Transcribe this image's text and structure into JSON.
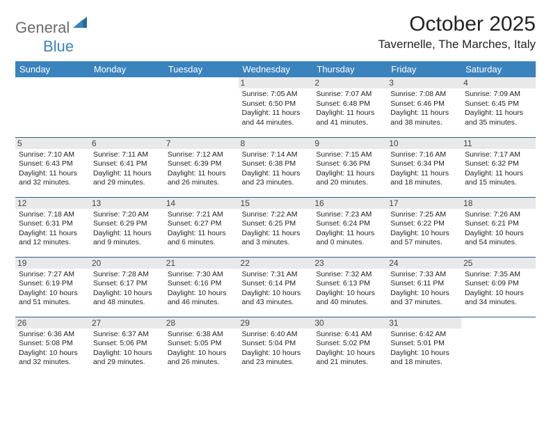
{
  "logo": {
    "text_gray": "General",
    "text_blue": "Blue"
  },
  "title": "October 2025",
  "location": "Tavernelle, The Marches, Italy",
  "colors": {
    "header_bg": "#3b83bd",
    "header_text": "#ffffff",
    "row_border": "#2f5c88",
    "daynum_bg": "#e9e9e9",
    "body_text": "#222222",
    "logo_gray": "#6a6a6a",
    "logo_blue": "#3b83bd",
    "page_bg": "#ffffff"
  },
  "weekdays": [
    "Sunday",
    "Monday",
    "Tuesday",
    "Wednesday",
    "Thursday",
    "Friday",
    "Saturday"
  ],
  "weeks": [
    [
      null,
      null,
      null,
      {
        "n": "1",
        "sr": "7:05 AM",
        "ss": "6:50 PM",
        "dl": "11 hours and 44 minutes."
      },
      {
        "n": "2",
        "sr": "7:07 AM",
        "ss": "6:48 PM",
        "dl": "11 hours and 41 minutes."
      },
      {
        "n": "3",
        "sr": "7:08 AM",
        "ss": "6:46 PM",
        "dl": "11 hours and 38 minutes."
      },
      {
        "n": "4",
        "sr": "7:09 AM",
        "ss": "6:45 PM",
        "dl": "11 hours and 35 minutes."
      }
    ],
    [
      {
        "n": "5",
        "sr": "7:10 AM",
        "ss": "6:43 PM",
        "dl": "11 hours and 32 minutes."
      },
      {
        "n": "6",
        "sr": "7:11 AM",
        "ss": "6:41 PM",
        "dl": "11 hours and 29 minutes."
      },
      {
        "n": "7",
        "sr": "7:12 AM",
        "ss": "6:39 PM",
        "dl": "11 hours and 26 minutes."
      },
      {
        "n": "8",
        "sr": "7:14 AM",
        "ss": "6:38 PM",
        "dl": "11 hours and 23 minutes."
      },
      {
        "n": "9",
        "sr": "7:15 AM",
        "ss": "6:36 PM",
        "dl": "11 hours and 20 minutes."
      },
      {
        "n": "10",
        "sr": "7:16 AM",
        "ss": "6:34 PM",
        "dl": "11 hours and 18 minutes."
      },
      {
        "n": "11",
        "sr": "7:17 AM",
        "ss": "6:32 PM",
        "dl": "11 hours and 15 minutes."
      }
    ],
    [
      {
        "n": "12",
        "sr": "7:18 AM",
        "ss": "6:31 PM",
        "dl": "11 hours and 12 minutes."
      },
      {
        "n": "13",
        "sr": "7:20 AM",
        "ss": "6:29 PM",
        "dl": "11 hours and 9 minutes."
      },
      {
        "n": "14",
        "sr": "7:21 AM",
        "ss": "6:27 PM",
        "dl": "11 hours and 6 minutes."
      },
      {
        "n": "15",
        "sr": "7:22 AM",
        "ss": "6:25 PM",
        "dl": "11 hours and 3 minutes."
      },
      {
        "n": "16",
        "sr": "7:23 AM",
        "ss": "6:24 PM",
        "dl": "11 hours and 0 minutes."
      },
      {
        "n": "17",
        "sr": "7:25 AM",
        "ss": "6:22 PM",
        "dl": "10 hours and 57 minutes."
      },
      {
        "n": "18",
        "sr": "7:26 AM",
        "ss": "6:21 PM",
        "dl": "10 hours and 54 minutes."
      }
    ],
    [
      {
        "n": "19",
        "sr": "7:27 AM",
        "ss": "6:19 PM",
        "dl": "10 hours and 51 minutes."
      },
      {
        "n": "20",
        "sr": "7:28 AM",
        "ss": "6:17 PM",
        "dl": "10 hours and 48 minutes."
      },
      {
        "n": "21",
        "sr": "7:30 AM",
        "ss": "6:16 PM",
        "dl": "10 hours and 46 minutes."
      },
      {
        "n": "22",
        "sr": "7:31 AM",
        "ss": "6:14 PM",
        "dl": "10 hours and 43 minutes."
      },
      {
        "n": "23",
        "sr": "7:32 AM",
        "ss": "6:13 PM",
        "dl": "10 hours and 40 minutes."
      },
      {
        "n": "24",
        "sr": "7:33 AM",
        "ss": "6:11 PM",
        "dl": "10 hours and 37 minutes."
      },
      {
        "n": "25",
        "sr": "7:35 AM",
        "ss": "6:09 PM",
        "dl": "10 hours and 34 minutes."
      }
    ],
    [
      {
        "n": "26",
        "sr": "6:36 AM",
        "ss": "5:08 PM",
        "dl": "10 hours and 32 minutes."
      },
      {
        "n": "27",
        "sr": "6:37 AM",
        "ss": "5:06 PM",
        "dl": "10 hours and 29 minutes."
      },
      {
        "n": "28",
        "sr": "6:38 AM",
        "ss": "5:05 PM",
        "dl": "10 hours and 26 minutes."
      },
      {
        "n": "29",
        "sr": "6:40 AM",
        "ss": "5:04 PM",
        "dl": "10 hours and 23 minutes."
      },
      {
        "n": "30",
        "sr": "6:41 AM",
        "ss": "5:02 PM",
        "dl": "10 hours and 21 minutes."
      },
      {
        "n": "31",
        "sr": "6:42 AM",
        "ss": "5:01 PM",
        "dl": "10 hours and 18 minutes."
      },
      null
    ]
  ],
  "labels": {
    "sunrise": "Sunrise:",
    "sunset": "Sunset:",
    "daylight": "Daylight:"
  }
}
